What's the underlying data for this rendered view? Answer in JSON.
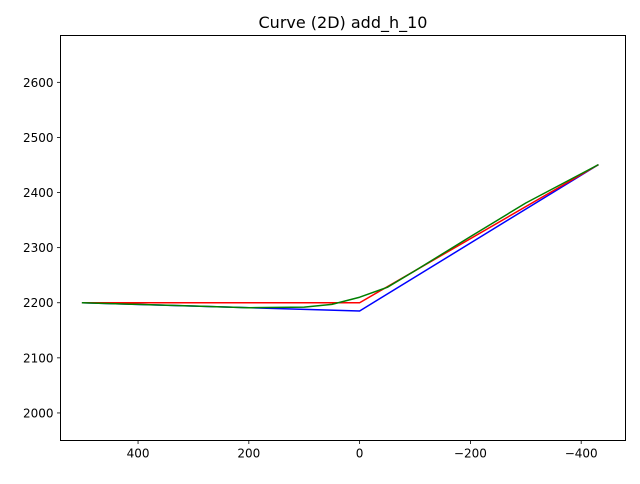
{
  "chart_data": {
    "type": "line",
    "title": "Curve (2D) add_h_10",
    "xlabel": "",
    "ylabel": "",
    "xlim": [
      540,
      -480
    ],
    "ylim": [
      1950,
      2685
    ],
    "x_ticks": [
      400,
      200,
      0,
      -200,
      -400
    ],
    "x_tick_labels": [
      "400",
      "200",
      "0",
      "−200",
      "−400"
    ],
    "y_ticks": [
      2000,
      2100,
      2200,
      2300,
      2400,
      2500,
      2600
    ],
    "y_tick_labels": [
      "2000",
      "2100",
      "2200",
      "2300",
      "2400",
      "2500",
      "2600"
    ],
    "grid": false,
    "legend": "none",
    "series": [
      {
        "color": "#0000ff",
        "x": [
          500,
          0,
          -430
        ],
        "y": [
          2200,
          2185,
          2450
        ]
      },
      {
        "color": "#ff0000",
        "x": [
          500,
          0,
          -430
        ],
        "y": [
          2200,
          2200,
          2450
        ]
      },
      {
        "color": "#007f00",
        "x": [
          500,
          400,
          300,
          200,
          100,
          50,
          0,
          -50,
          -100,
          -200,
          -300,
          -430
        ],
        "y": [
          2200,
          2197,
          2194,
          2191,
          2192,
          2197,
          2210,
          2228,
          2258,
          2320,
          2381,
          2450
        ]
      }
    ]
  }
}
